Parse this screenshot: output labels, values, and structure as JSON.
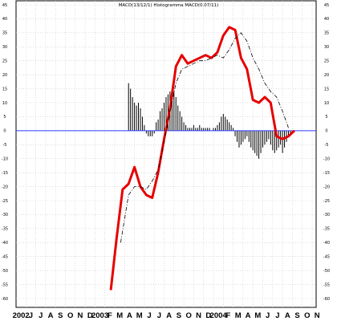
{
  "chart_data": {
    "type": "line",
    "title": "MACD(13/12/1) Histogramma MACD(0.07/11)",
    "xlabel": "",
    "ylabel": "",
    "ylim": [
      -62,
      46
    ],
    "y_ticks": [
      45,
      40,
      35,
      30,
      25,
      20,
      15,
      10,
      5,
      0,
      -5,
      -10,
      -15,
      -20,
      -25,
      -30,
      -35,
      -40,
      -45,
      -50,
      -55,
      -60
    ],
    "grid": true,
    "x_labels": [
      "2002",
      "J",
      "J",
      "A",
      "S",
      "O",
      "N",
      "D",
      "2003",
      "F",
      "M",
      "A",
      "M",
      "J",
      "J",
      "A",
      "S",
      "O",
      "N",
      "D",
      "2004",
      "F",
      "M",
      "A",
      "M",
      "J",
      "J",
      "A",
      "S",
      "O",
      "N"
    ],
    "zero_line_color": "#2a3cff",
    "series": [
      {
        "style": "solid-red",
        "color": "#e60000",
        "x": [
          9.6,
          10.2,
          10.8,
          11.4,
          12,
          12.6,
          13.2,
          13.8,
          14.4,
          15,
          15.6,
          16.2,
          16.8,
          17.4,
          18,
          18.6,
          19.2,
          19.8,
          20.4,
          21,
          21.6,
          22.2,
          22.8,
          23.4,
          24,
          24.6,
          25.2,
          25.8,
          26.4,
          27,
          27.6,
          28.2
        ],
        "values": [
          -57,
          -38,
          -21,
          -19,
          -13,
          -20,
          -23,
          -24,
          -15,
          -3,
          8,
          23,
          27,
          24,
          25,
          26,
          27,
          26,
          28,
          34,
          37,
          36,
          26,
          22,
          11,
          10,
          12,
          10,
          -2,
          -3,
          -2,
          0
        ]
      },
      {
        "style": "dashed-black",
        "color": "#000000",
        "x": [
          10.6,
          11.4,
          12,
          12.6,
          13.2,
          13.8,
          14.4,
          15,
          15.6,
          16.2,
          16.8,
          17.4,
          18,
          18.6,
          19.2,
          19.8,
          20.4,
          21,
          21.6,
          22.2,
          22.8,
          23.4,
          24,
          24.6,
          25.2,
          25.8,
          26.4,
          27,
          27.6
        ],
        "values": [
          -40,
          -23,
          -20,
          -20,
          -21,
          -18,
          -14,
          -4,
          7,
          17,
          22,
          23,
          24,
          25,
          25,
          26,
          27,
          26,
          29,
          33,
          35,
          32,
          26,
          22,
          17,
          14,
          12,
          7,
          1
        ]
      },
      {
        "style": "histogram",
        "color": "#000000",
        "x": [
          11.4,
          11.6,
          11.8,
          12,
          12.2,
          12.4,
          12.6,
          12.8,
          13,
          13.2,
          13.4,
          13.6,
          13.8,
          14,
          14.2,
          14.4,
          14.6,
          14.8,
          15,
          15.2,
          15.4,
          15.6,
          15.8,
          16,
          16.2,
          16.4,
          16.6,
          16.8,
          17,
          17.2,
          17.4,
          17.6,
          17.8,
          18,
          18.2,
          18.4,
          18.6,
          18.8,
          19,
          19.2,
          19.4,
          19.6,
          19.8,
          20,
          20.2,
          20.4,
          20.6,
          20.8,
          21,
          21.2,
          21.4,
          21.6,
          21.8,
          22,
          22.2,
          22.4,
          22.6,
          22.8,
          23,
          23.2,
          23.4,
          23.6,
          23.8,
          24,
          24.2,
          24.4,
          24.6,
          24.8,
          25,
          25.2,
          25.4,
          25.6,
          25.8,
          26,
          26.2,
          26.4,
          26.6,
          26.8,
          27,
          27.2,
          27.4,
          27.6,
          27.8,
          28
        ],
        "values": [
          17,
          15,
          12,
          10,
          9,
          10,
          8,
          5,
          2,
          -1,
          -2,
          -2,
          -2,
          -1,
          3,
          4,
          7,
          8,
          10,
          12,
          13,
          14,
          15,
          14,
          12,
          9,
          7,
          5,
          3,
          2,
          1,
          1,
          1,
          2,
          1,
          1,
          2,
          1,
          1,
          1,
          1,
          1,
          0,
          1,
          1,
          2,
          3,
          5,
          6,
          5,
          4,
          3,
          2,
          1,
          -2,
          -4,
          -6,
          -5,
          -4,
          -3,
          -2,
          -4,
          -6,
          -7,
          -8,
          -9,
          -10,
          -8,
          -6,
          -5,
          -4,
          -3,
          -5,
          -7,
          -8,
          -7,
          -6,
          -5,
          -8,
          -6,
          -4,
          -2,
          -1,
          0
        ]
      }
    ]
  }
}
